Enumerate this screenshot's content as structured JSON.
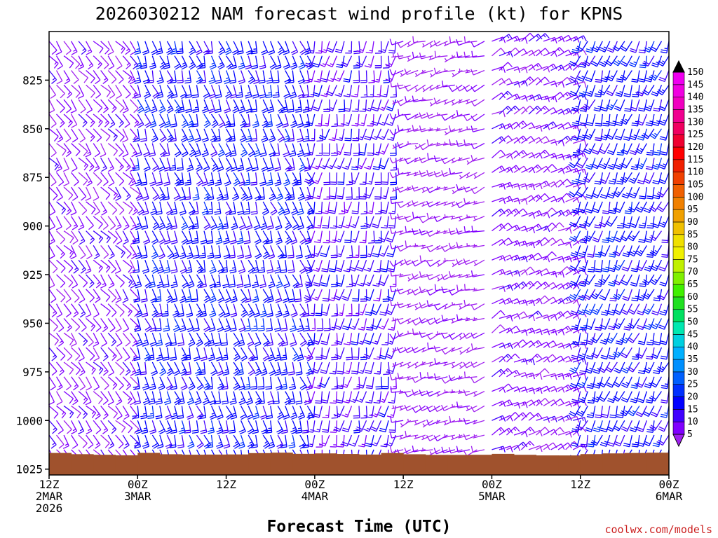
{
  "chart_data": {
    "type": "wind_barb_profile",
    "title": "2026030212 NAM forecast wind profile (kt) for KPNS",
    "xlabel": "Forecast Time (UTC)",
    "ylabel": "",
    "y_ticks": [
      825,
      850,
      875,
      900,
      925,
      950,
      975,
      1000,
      1025
    ],
    "ylim": [
      1028,
      800
    ],
    "x_ticks": [
      {
        "hour": 0,
        "label": "12Z",
        "date": "2MAR",
        "year": "2026"
      },
      {
        "hour": 12,
        "label": "00Z",
        "date": "3MAR",
        "year": ""
      },
      {
        "hour": 24,
        "label": "12Z",
        "date": "",
        "year": ""
      },
      {
        "hour": 36,
        "label": "00Z",
        "date": "4MAR",
        "year": ""
      },
      {
        "hour": 48,
        "label": "12Z",
        "date": "",
        "year": ""
      },
      {
        "hour": 60,
        "label": "00Z",
        "date": "5MAR",
        "year": ""
      },
      {
        "hour": 72,
        "label": "12Z",
        "date": "",
        "year": ""
      },
      {
        "hour": 84,
        "label": "00Z",
        "date": "6MAR",
        "year": ""
      }
    ],
    "xlim": [
      0,
      84
    ],
    "time_step_hours": 1,
    "level_step_hpa": 7.5,
    "surface_pressure_hpa": 1017,
    "colorbar": {
      "levels": [
        5,
        10,
        15,
        20,
        25,
        30,
        35,
        40,
        45,
        50,
        55,
        60,
        65,
        70,
        75,
        80,
        85,
        90,
        95,
        100,
        105,
        110,
        115,
        120,
        125,
        130,
        135,
        140,
        145,
        150
      ],
      "colors": [
        "#a020f0",
        "#8000ff",
        "#4000ff",
        "#0000ff",
        "#0030ff",
        "#0060ff",
        "#0090ff",
        "#00b0ff",
        "#00d0e0",
        "#00e8b0",
        "#00e060",
        "#20e020",
        "#40f000",
        "#80f000",
        "#c0f000",
        "#f0f000",
        "#f0e000",
        "#f0c000",
        "#f0a000",
        "#f08000",
        "#f06000",
        "#f04000",
        "#f02000",
        "#ff0000",
        "#f00030",
        "#f00060",
        "#f00090",
        "#f000c0",
        "#f000e0",
        "#f000f0"
      ]
    },
    "wind_regimes": [
      {
        "from_hour": 0,
        "to_hour": 12,
        "direction_deg": 140,
        "speed_kt": 12
      },
      {
        "from_hour": 12,
        "to_hour": 36,
        "direction_deg": 160,
        "speed_kt": 22
      },
      {
        "from_hour": 36,
        "to_hour": 48,
        "direction_deg": 190,
        "speed_kt": 17
      },
      {
        "from_hour": 48,
        "to_hour": 60,
        "direction_deg": 250,
        "speed_kt": 8
      },
      {
        "from_hour": 60,
        "to_hour": 72,
        "direction_deg": 60,
        "speed_kt": 12
      },
      {
        "from_hour": 72,
        "to_hour": 84,
        "direction_deg": 200,
        "speed_kt": 22
      }
    ],
    "terrain_color": "#a0522d",
    "credit": "coolwx.com/models"
  }
}
